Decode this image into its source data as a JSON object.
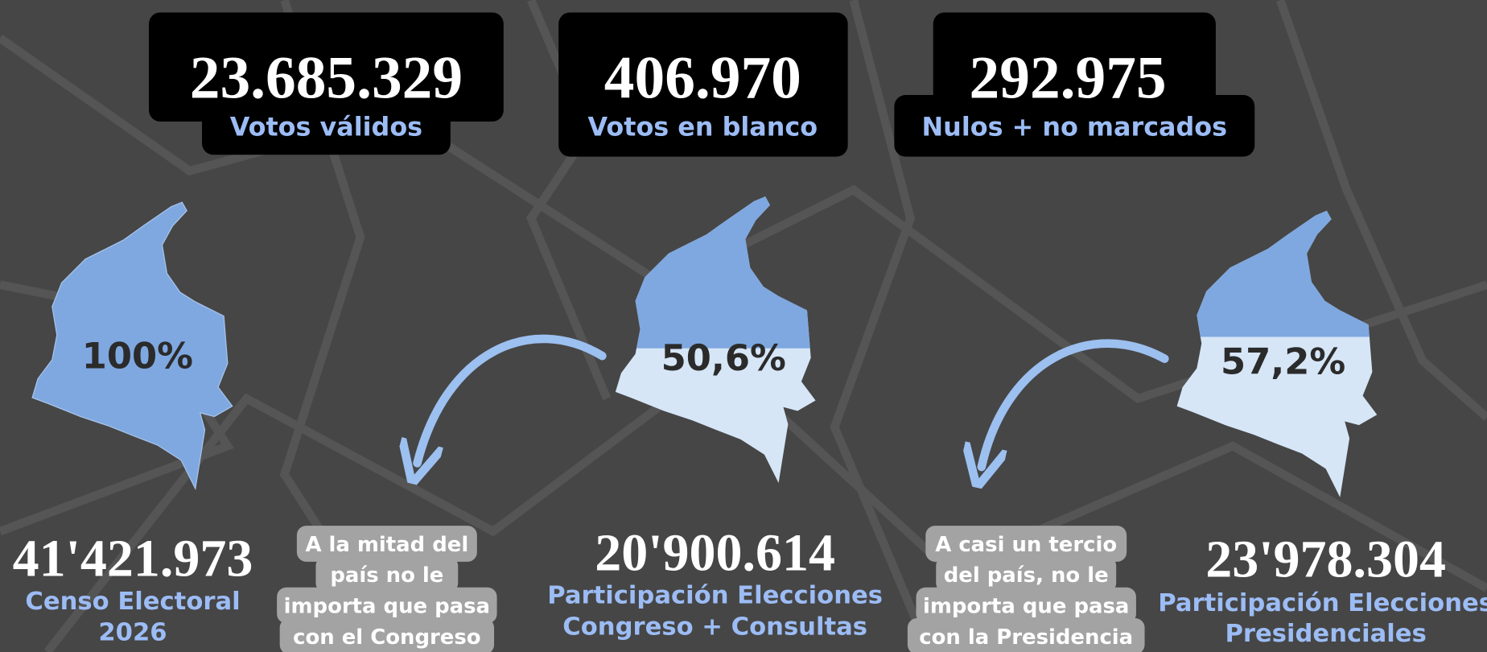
{
  "top_stats": [
    {
      "value": "23.685.329",
      "label": "Votos válidos"
    },
    {
      "value": "406.970",
      "label": "Votos en blanco"
    },
    {
      "value": "292.975",
      "label": "Nulos + no marcados"
    }
  ],
  "maps": [
    {
      "percent": "100%"
    },
    {
      "percent": "50,6%"
    },
    {
      "percent": "57,2%"
    }
  ],
  "totals": [
    {
      "value": "41'421.973",
      "label_lines": [
        "Censo Electoral",
        "2026"
      ]
    },
    {
      "value": "20'900.614",
      "label_lines": [
        "Participación Elecciones",
        "Congreso + Consultas"
      ]
    },
    {
      "value": "23'978.304",
      "label_lines": [
        "Participación Elecciones",
        "Presidenciales"
      ]
    }
  ],
  "notes": [
    {
      "lines": [
        "A la mitad del",
        "país no le",
        "importa que pasa",
        "con el Congreso"
      ]
    },
    {
      "lines": [
        "A casi un tercio",
        "del país, no le",
        "importa que pasa",
        "con la Presidencia"
      ]
    }
  ]
}
